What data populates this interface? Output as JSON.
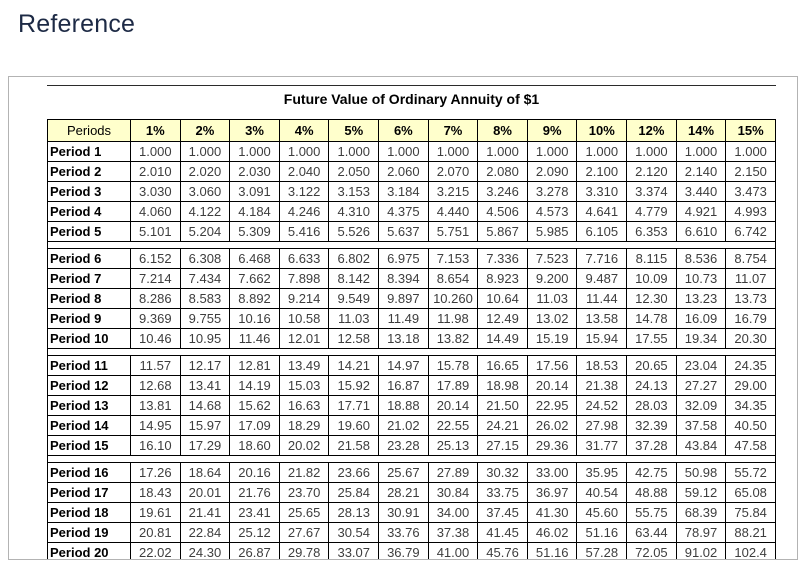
{
  "page": {
    "title": "Reference"
  },
  "colors": {
    "header_bg": "#FFFFCC",
    "table_border": "#000000",
    "panel_border": "#B3B3B3",
    "heading_text": "#1D2A45",
    "value_text": "#3D3D3D"
  },
  "reference_panel": {
    "table_title": "Future Value of Ordinary Annuity of $1",
    "columns": [
      "Periods",
      "1%",
      "2%",
      "3%",
      "4%",
      "5%",
      "6%",
      "7%",
      "8%",
      "9%",
      "10%",
      "12%",
      "14%",
      "15%"
    ],
    "row_groups": [
      {
        "rows": [
          {
            "label": "Period 1",
            "values": [
              "1.000",
              "1.000",
              "1.000",
              "1.000",
              "1.000",
              "1.000",
              "1.000",
              "1.000",
              "1.000",
              "1.000",
              "1.000",
              "1.000",
              "1.000"
            ]
          },
          {
            "label": "Period 2",
            "values": [
              "2.010",
              "2.020",
              "2.030",
              "2.040",
              "2.050",
              "2.060",
              "2.070",
              "2.080",
              "2.090",
              "2.100",
              "2.120",
              "2.140",
              "2.150"
            ]
          },
          {
            "label": "Period 3",
            "values": [
              "3.030",
              "3.060",
              "3.091",
              "3.122",
              "3.153",
              "3.184",
              "3.215",
              "3.246",
              "3.278",
              "3.310",
              "3.374",
              "3.440",
              "3.473"
            ]
          },
          {
            "label": "Period 4",
            "values": [
              "4.060",
              "4.122",
              "4.184",
              "4.246",
              "4.310",
              "4.375",
              "4.440",
              "4.506",
              "4.573",
              "4.641",
              "4.779",
              "4.921",
              "4.993"
            ]
          },
          {
            "label": "Period 5",
            "values": [
              "5.101",
              "5.204",
              "5.309",
              "5.416",
              "5.526",
              "5.637",
              "5.751",
              "5.867",
              "5.985",
              "6.105",
              "6.353",
              "6.610",
              "6.742"
            ]
          }
        ]
      },
      {
        "rows": [
          {
            "label": "Period 6",
            "values": [
              "6.152",
              "6.308",
              "6.468",
              "6.633",
              "6.802",
              "6.975",
              "7.153",
              "7.336",
              "7.523",
              "7.716",
              "8.115",
              "8.536",
              "8.754"
            ]
          },
          {
            "label": "Period 7",
            "values": [
              "7.214",
              "7.434",
              "7.662",
              "7.898",
              "8.142",
              "8.394",
              "8.654",
              "8.923",
              "9.200",
              "9.487",
              "10.09",
              "10.73",
              "11.07"
            ]
          },
          {
            "label": "Period 8",
            "values": [
              "8.286",
              "8.583",
              "8.892",
              "9.214",
              "9.549",
              "9.897",
              "10.260",
              "10.64",
              "11.03",
              "11.44",
              "12.30",
              "13.23",
              "13.73"
            ]
          },
          {
            "label": "Period 9",
            "values": [
              "9.369",
              "9.755",
              "10.16",
              "10.58",
              "11.03",
              "11.49",
              "11.98",
              "12.49",
              "13.02",
              "13.58",
              "14.78",
              "16.09",
              "16.79"
            ]
          },
          {
            "label": "Period 10",
            "values": [
              "10.46",
              "10.95",
              "11.46",
              "12.01",
              "12.58",
              "13.18",
              "13.82",
              "14.49",
              "15.19",
              "15.94",
              "17.55",
              "19.34",
              "20.30"
            ]
          }
        ]
      },
      {
        "rows": [
          {
            "label": "Period 11",
            "values": [
              "11.57",
              "12.17",
              "12.81",
              "13.49",
              "14.21",
              "14.97",
              "15.78",
              "16.65",
              "17.56",
              "18.53",
              "20.65",
              "23.04",
              "24.35"
            ]
          },
          {
            "label": "Period 12",
            "values": [
              "12.68",
              "13.41",
              "14.19",
              "15.03",
              "15.92",
              "16.87",
              "17.89",
              "18.98",
              "20.14",
              "21.38",
              "24.13",
              "27.27",
              "29.00"
            ]
          },
          {
            "label": "Period 13",
            "values": [
              "13.81",
              "14.68",
              "15.62",
              "16.63",
              "17.71",
              "18.88",
              "20.14",
              "21.50",
              "22.95",
              "24.52",
              "28.03",
              "32.09",
              "34.35"
            ]
          },
          {
            "label": "Period 14",
            "values": [
              "14.95",
              "15.97",
              "17.09",
              "18.29",
              "19.60",
              "21.02",
              "22.55",
              "24.21",
              "26.02",
              "27.98",
              "32.39",
              "37.58",
              "40.50"
            ]
          },
          {
            "label": "Period 15",
            "values": [
              "16.10",
              "17.29",
              "18.60",
              "20.02",
              "21.58",
              "23.28",
              "25.13",
              "27.15",
              "29.36",
              "31.77",
              "37.28",
              "43.84",
              "47.58"
            ]
          }
        ]
      },
      {
        "rows": [
          {
            "label": "Period 16",
            "values": [
              "17.26",
              "18.64",
              "20.16",
              "21.82",
              "23.66",
              "25.67",
              "27.89",
              "30.32",
              "33.00",
              "35.95",
              "42.75",
              "50.98",
              "55.72"
            ]
          },
          {
            "label": "Period 17",
            "values": [
              "18.43",
              "20.01",
              "21.76",
              "23.70",
              "25.84",
              "28.21",
              "30.84",
              "33.75",
              "36.97",
              "40.54",
              "48.88",
              "59.12",
              "65.08"
            ]
          },
          {
            "label": "Period 18",
            "values": [
              "19.61",
              "21.41",
              "23.41",
              "25.65",
              "28.13",
              "30.91",
              "34.00",
              "37.45",
              "41.30",
              "45.60",
              "55.75",
              "68.39",
              "75.84"
            ]
          },
          {
            "label": "Period 19",
            "values": [
              "20.81",
              "22.84",
              "25.12",
              "27.67",
              "30.54",
              "33.76",
              "37.38",
              "41.45",
              "46.02",
              "51.16",
              "63.44",
              "78.97",
              "88.21"
            ]
          },
          {
            "label": "Period 20",
            "values": [
              "22.02",
              "24.30",
              "26.87",
              "29.78",
              "33.07",
              "36.79",
              "41.00",
              "45.76",
              "51.16",
              "57.28",
              "72.05",
              "91.02",
              "102.4"
            ]
          }
        ]
      }
    ]
  }
}
